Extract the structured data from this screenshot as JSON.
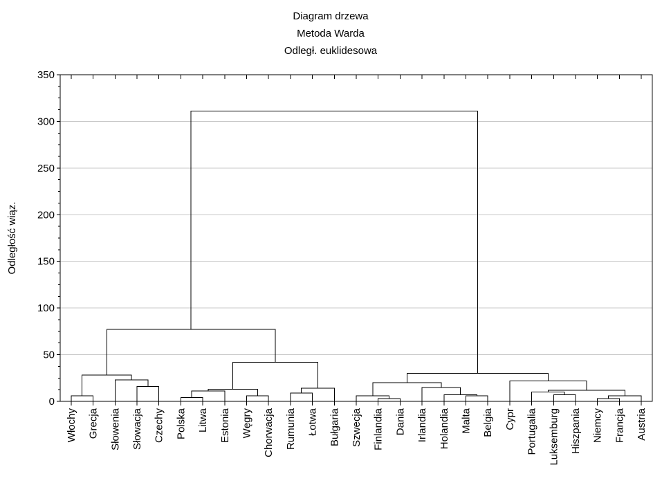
{
  "chart_data": {
    "type": "dendrogram",
    "title": [
      "Diagram drzewa",
      "Metoda Warda",
      "Odległ. euklidesowa"
    ],
    "xlabel": "",
    "ylabel": "Odległość wiąz.",
    "ylim": [
      0,
      350
    ],
    "yticks": [
      0,
      50,
      100,
      150,
      200,
      250,
      300,
      350
    ],
    "grid": "horizontal",
    "leaves": [
      "Włochy",
      "Grecja",
      "Słowenia",
      "Słowacja",
      "Czechy",
      "Polska",
      "Litwa",
      "Estonia",
      "Węgry",
      "Chorwacja",
      "Rumunia",
      "Łotwa",
      "Bułgaria",
      "Szwecja",
      "Finlandia",
      "Dania",
      "Irlandia",
      "Holandia",
      "Malta",
      "Belgia",
      "Cypr",
      "Portugalia",
      "Luksemburg",
      "Hiszpania",
      "Niemcy",
      "Francja",
      "Austria"
    ],
    "merges": [
      {
        "id": "m1",
        "left": "Włochy",
        "right": "Grecja",
        "height": 6
      },
      {
        "id": "m2",
        "left": "Słowacja",
        "right": "Czechy",
        "height": 16
      },
      {
        "id": "m3",
        "left": "Słowenia",
        "right": "m2",
        "height": 23
      },
      {
        "id": "m4",
        "left": "m1",
        "right": "m3",
        "height": 28
      },
      {
        "id": "m5",
        "left": "Polska",
        "right": "Litwa",
        "height": 4
      },
      {
        "id": "m6",
        "left": "m5",
        "right": "Estonia",
        "height": 11
      },
      {
        "id": "m7",
        "left": "Węgry",
        "right": "Chorwacja",
        "height": 6
      },
      {
        "id": "m8",
        "left": "m6",
        "right": "m7",
        "height": 13
      },
      {
        "id": "m9",
        "left": "Rumunia",
        "right": "Łotwa",
        "height": 9
      },
      {
        "id": "m10",
        "left": "m9",
        "right": "Bułgaria",
        "height": 14
      },
      {
        "id": "m11",
        "left": "m8",
        "right": "m10",
        "height": 42
      },
      {
        "id": "m12",
        "left": "m4",
        "right": "m11",
        "height": 77
      },
      {
        "id": "m13",
        "left": "Finlandia",
        "right": "Dania",
        "height": 3
      },
      {
        "id": "m14",
        "left": "Szwecja",
        "right": "m13",
        "height": 6
      },
      {
        "id": "m15",
        "left": "Malta",
        "right": "Belgia",
        "height": 6
      },
      {
        "id": "m16",
        "left": "Holandia",
        "right": "m15",
        "height": 7
      },
      {
        "id": "m17",
        "left": "Irlandia",
        "right": "m16",
        "height": 15
      },
      {
        "id": "m18",
        "left": "m14",
        "right": "m17",
        "height": 20
      },
      {
        "id": "m19",
        "left": "Luksemburg",
        "right": "Hiszpania",
        "height": 7
      },
      {
        "id": "m20",
        "left": "Portugalia",
        "right": "m19",
        "height": 10
      },
      {
        "id": "m21",
        "left": "Niemcy",
        "right": "Francja",
        "height": 3
      },
      {
        "id": "m22",
        "left": "m21",
        "right": "Austria",
        "height": 6
      },
      {
        "id": "m23",
        "left": "m20",
        "right": "m22",
        "height": 12
      },
      {
        "id": "m24",
        "left": "Cypr",
        "right": "m23",
        "height": 22
      },
      {
        "id": "m25",
        "left": "m18",
        "right": "m24",
        "height": 30
      },
      {
        "id": "m26",
        "left": "m12",
        "right": "m25",
        "height": 311
      }
    ]
  }
}
